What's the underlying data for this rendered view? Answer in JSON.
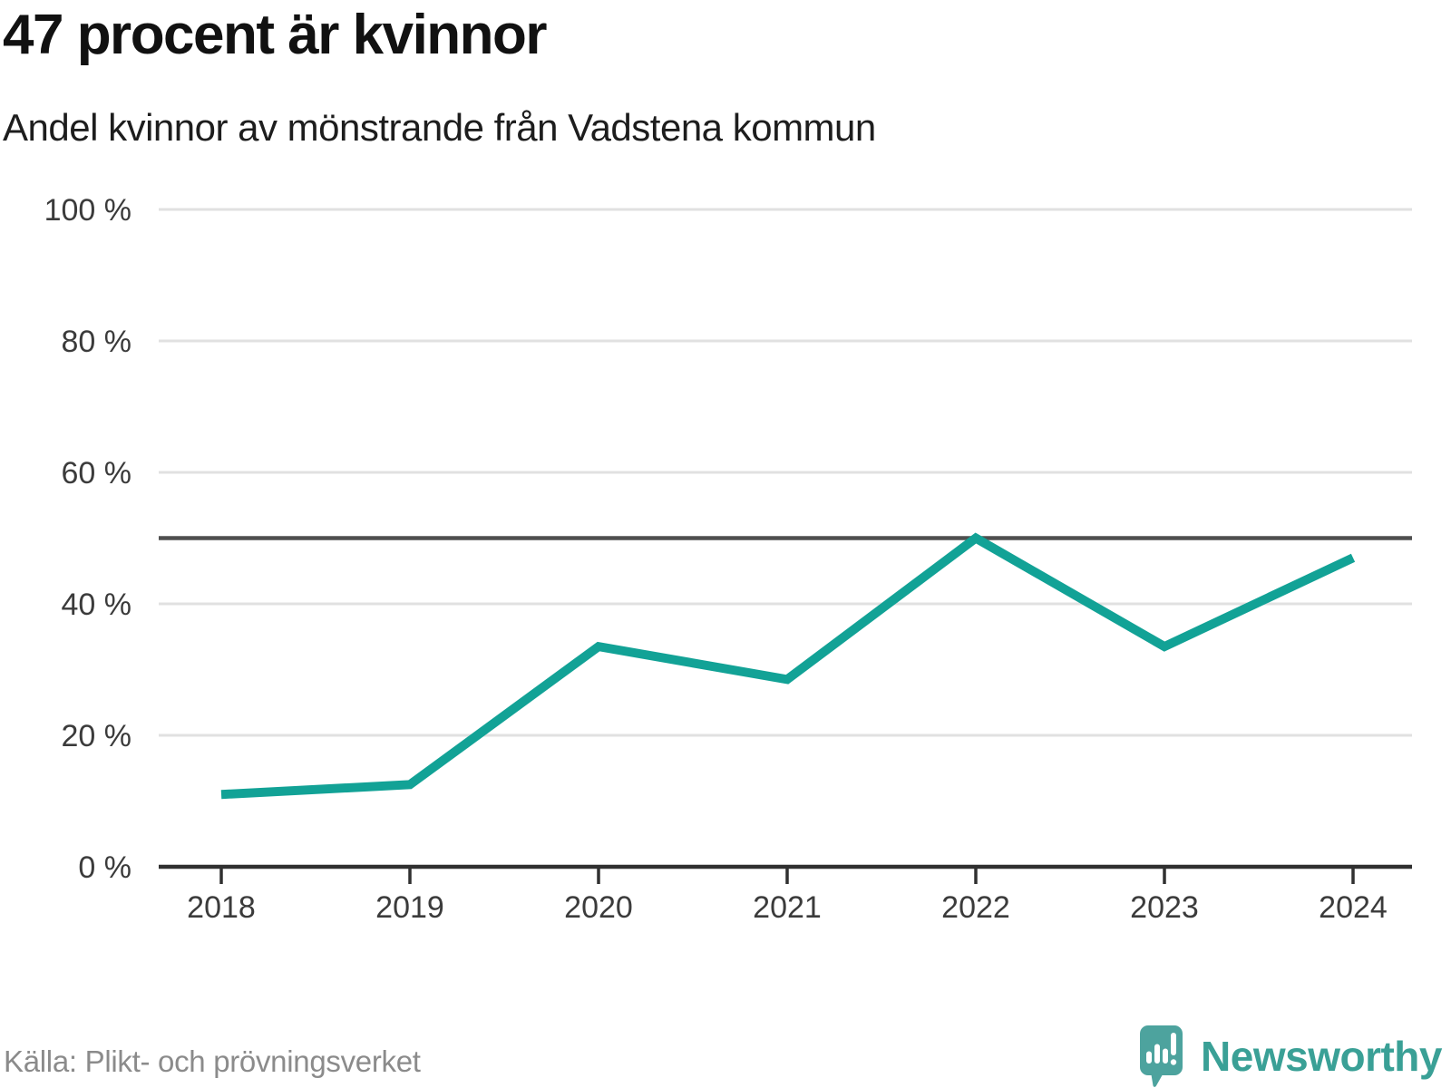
{
  "header": {
    "title": "47 procent är kvinnor",
    "subtitle": "Andel kvinnor av mönstrande från Vadstena kommun"
  },
  "chart_data": {
    "type": "line",
    "title": "47 procent är kvinnor",
    "subtitle": "Andel kvinnor av mönstrande från Vadstena kommun",
    "categories": [
      "2018",
      "2019",
      "2020",
      "2021",
      "2022",
      "2023",
      "2024"
    ],
    "series": [
      {
        "name": "Andel kvinnor av mönstrande, Vadstena kommun",
        "values": [
          11,
          12.5,
          33.5,
          28.5,
          50,
          33.5,
          47
        ]
      }
    ],
    "ylim": [
      0,
      100
    ],
    "ytick_values": [
      0,
      20,
      40,
      60,
      80,
      100
    ],
    "ytick_labels": [
      "0 %",
      "20 %",
      "40 %",
      "60 %",
      "80 %",
      "100 %"
    ],
    "reference_line": 50,
    "grid": "horizontal",
    "legend": "none",
    "xlabel": "",
    "ylabel": ""
  },
  "footer": {
    "source": "Källa: Plikt- och prövningsverket",
    "brand": "Newsworthy"
  },
  "colors": {
    "line": "#12a296",
    "grid": "#e1e1e1",
    "reference_line": "#4f4f4f",
    "axis": "#303030",
    "axis_text": "#3b3b3b",
    "brand_text": "#3aa096",
    "brand_icon": "#4da39e"
  }
}
